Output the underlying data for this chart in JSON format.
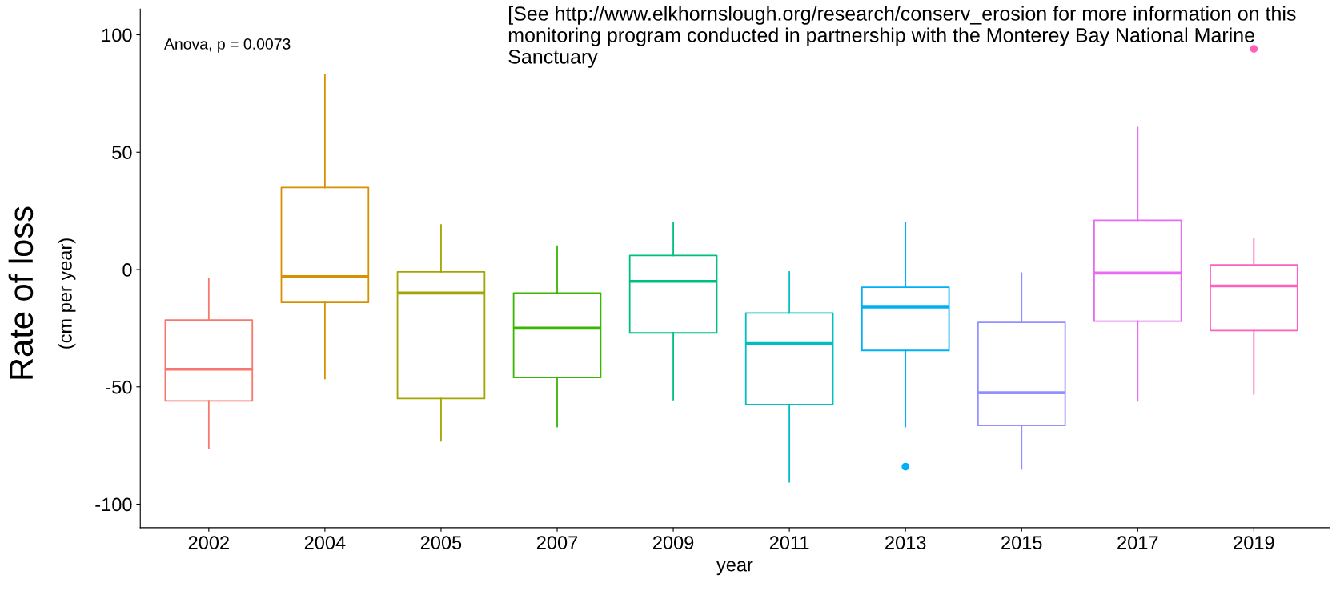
{
  "chart_data": {
    "type": "box",
    "xlabel": "year",
    "ylabel": "Rate of loss\n(cm per year)",
    "categories": [
      "2002",
      "2004",
      "2005",
      "2007",
      "2009",
      "2011",
      "2013",
      "2015",
      "2017",
      "2019"
    ],
    "colors": [
      "#f8766d",
      "#d89000",
      "#a3a500",
      "#39b600",
      "#00bf7d",
      "#00bfc4",
      "#00b0f6",
      "#9590ff",
      "#e76bf3",
      "#ff62bc"
    ],
    "boxes": [
      {
        "low": -76,
        "q1": -56,
        "median": -42.5,
        "q3": -21.5,
        "high": -4
      },
      {
        "low": -46.5,
        "q1": -14,
        "median": -3,
        "q3": 35,
        "high": 83
      },
      {
        "low": -73,
        "q1": -55,
        "median": -10,
        "q3": -1,
        "high": 19
      },
      {
        "low": -67,
        "q1": -46,
        "median": -25,
        "q3": -10,
        "high": 10
      },
      {
        "low": -55.5,
        "q1": -27,
        "median": -5,
        "q3": 6,
        "high": 20
      },
      {
        "low": -90.5,
        "q1": -57.5,
        "median": -31.5,
        "q3": -18.5,
        "high": -1
      },
      {
        "low": -67,
        "q1": -34.5,
        "median": -16,
        "q3": -7.5,
        "high": 20,
        "outliers": [
          -84
        ]
      },
      {
        "low": -85,
        "q1": -66.5,
        "median": -52.5,
        "q3": -22.5,
        "high": -1.5
      },
      {
        "low": -56,
        "q1": -22,
        "median": -1.5,
        "q3": 21,
        "high": 60.5
      },
      {
        "low": -53,
        "q1": -26,
        "median": -7,
        "q3": 2,
        "high": 13,
        "outliers": [
          94
        ]
      }
    ],
    "ylim": [
      -110,
      111
    ],
    "yticks": [
      -100,
      -50,
      0,
      50,
      100
    ],
    "grid": false,
    "annotations": [
      "Anova, p = 0.0073",
      "[See http://www.elkhornslough.org/research/conserv_erosion for more information on this monitoring program conducted in partnership with the Monterey Bay National Marine Sanctuary"
    ]
  }
}
